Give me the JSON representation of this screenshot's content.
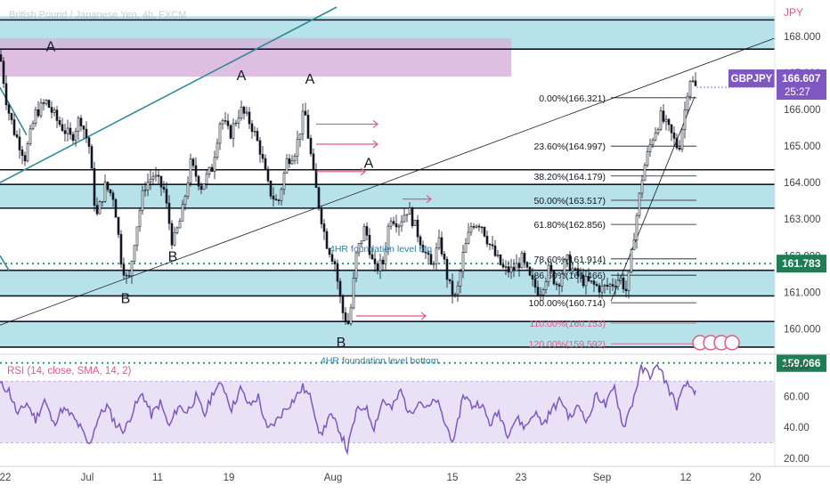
{
  "header": {
    "title": "British Pound / Japanese Yen, 4h, FXCM",
    "currency": "JPY"
  },
  "price_badge": {
    "symbol": "GBPJPY",
    "price": "166.607",
    "countdown": "25:27"
  },
  "level_badges": [
    {
      "label": "161.783",
      "value": 161.783,
      "color": "#1e7d53"
    },
    {
      "label": "159.066",
      "value": 159.066,
      "color": "#1e7d53"
    }
  ],
  "colors": {
    "up": "#131722",
    "down": "#131722",
    "zone": "#9fd8e3",
    "pink_zone": "#d8b4dc",
    "rsi": "#7e57c2",
    "rsi_band": "#e9e2f6",
    "fib": "#131722",
    "fib_ext": "#e05a88",
    "teal_line": "#2e8c99",
    "arrow": "#e05a88"
  },
  "chart_data": [
    {
      "type": "candlestick",
      "symbol": "GBPJPY",
      "timeframe": "4h",
      "y_axis": {
        "ticks": [
          160.0,
          161.0,
          162.0,
          163.0,
          164.0,
          165.0,
          166.0,
          167.0,
          168.0
        ],
        "tick_labels": [
          "160.000",
          "161.000",
          "162.000",
          "163.000",
          "164.000",
          "165.000",
          "166.000",
          "167.000",
          "168.000"
        ],
        "range": [
          159.45,
          168.8
        ]
      },
      "x_axis": {
        "tick_labels": [
          "22",
          "Jul",
          "11",
          "19",
          "Aug",
          "15",
          "23",
          "Sep",
          "12",
          "20"
        ]
      },
      "candle_anchors_close": [
        [
          0,
          167.5
        ],
        [
          8,
          166.1
        ],
        [
          16,
          165.4
        ],
        [
          28,
          164.7
        ],
        [
          40,
          165.9
        ],
        [
          52,
          166.2
        ],
        [
          64,
          165.7
        ],
        [
          80,
          165.2
        ],
        [
          90,
          165.8
        ],
        [
          100,
          165.0
        ],
        [
          108,
          163.0
        ],
        [
          118,
          163.9
        ],
        [
          128,
          163.6
        ],
        [
          136,
          161.9
        ],
        [
          144,
          161.2
        ],
        [
          152,
          162.6
        ],
        [
          162,
          163.9
        ],
        [
          172,
          164.2
        ],
        [
          184,
          163.8
        ],
        [
          194,
          162.3
        ],
        [
          204,
          163.1
        ],
        [
          214,
          164.5
        ],
        [
          226,
          163.9
        ],
        [
          238,
          164.4
        ],
        [
          248,
          165.8
        ],
        [
          258,
          165.3
        ],
        [
          270,
          166.0
        ],
        [
          282,
          165.6
        ],
        [
          292,
          164.9
        ],
        [
          302,
          163.8
        ],
        [
          312,
          163.4
        ],
        [
          322,
          164.6
        ],
        [
          332,
          164.9
        ],
        [
          342,
          166.0
        ],
        [
          352,
          164.2
        ],
        [
          358,
          163.4
        ],
        [
          366,
          162.4
        ],
        [
          376,
          161.8
        ],
        [
          384,
          160.5
        ],
        [
          392,
          160.1
        ],
        [
          400,
          162.0
        ],
        [
          410,
          162.8
        ],
        [
          420,
          161.6
        ],
        [
          430,
          161.8
        ],
        [
          438,
          163.1
        ],
        [
          448,
          162.9
        ],
        [
          458,
          163.3
        ],
        [
          466,
          162.8
        ],
        [
          474,
          162.3
        ],
        [
          484,
          161.7
        ],
        [
          494,
          162.4
        ],
        [
          504,
          161.2
        ],
        [
          512,
          160.8
        ],
        [
          520,
          162.0
        ],
        [
          530,
          162.9
        ],
        [
          540,
          162.9
        ],
        [
          548,
          162.4
        ],
        [
          556,
          162.0
        ],
        [
          566,
          161.6
        ],
        [
          576,
          161.6
        ],
        [
          586,
          161.9
        ],
        [
          596,
          161.3
        ],
        [
          606,
          161.0
        ],
        [
          616,
          161.6
        ],
        [
          626,
          161.2
        ],
        [
          636,
          161.9
        ],
        [
          646,
          161.5
        ],
        [
          656,
          161.3
        ],
        [
          666,
          161.2
        ],
        [
          676,
          161.1
        ],
        [
          686,
          161.2
        ],
        [
          696,
          161.4
        ],
        [
          704,
          161.0
        ],
        [
          712,
          162.6
        ],
        [
          722,
          164.3
        ],
        [
          732,
          165.2
        ],
        [
          742,
          165.8
        ],
        [
          752,
          165.4
        ],
        [
          762,
          164.9
        ],
        [
          768,
          165.8
        ],
        [
          774,
          166.9
        ],
        [
          781,
          166.6
        ]
      ],
      "horizontal_zones": [
        {
          "from": 167.65,
          "to": 168.55,
          "color": "#9fd8e3"
        },
        {
          "from": 163.3,
          "to": 163.95,
          "color": "#9fd8e3"
        },
        {
          "from": 160.9,
          "to": 161.6,
          "color": "#9fd8e3"
        },
        {
          "from": 159.5,
          "to": 160.2,
          "color": "#9fd8e3"
        },
        {
          "from": 166.9,
          "to": 167.95,
          "color": "#d8b4dc",
          "x_end_fraction": 0.66
        }
      ],
      "horizontal_lines": [
        168.45,
        167.65,
        164.35,
        163.95,
        163.3,
        161.6,
        160.9,
        160.2,
        159.5
      ],
      "dotted_lines": [
        161.783,
        159.066
      ],
      "fib_retracement": [
        {
          "label": "0.00%(166.321)",
          "value": 166.321
        },
        {
          "label": "23.60%(164.997)",
          "value": 164.997
        },
        {
          "label": "38.20%(164.179)",
          "value": 164.179
        },
        {
          "label": "50.00%(163.517)",
          "value": 163.517
        },
        {
          "label": "61.80%(162.856)",
          "value": 162.856
        },
        {
          "label": "78.60%(161.914)",
          "value": 161.914
        },
        {
          "label": "86.60%(161.466)",
          "value": 161.466
        },
        {
          "label": "100.00%(160.714)",
          "value": 160.714
        },
        {
          "label": "110.00%(160.153)",
          "value": 160.153
        },
        {
          "label": "120.00%(159.592)",
          "value": 159.592
        }
      ],
      "wave_labels": [
        {
          "text": "A",
          "x": 57,
          "value": 167.6
        },
        {
          "text": "A",
          "x": 271,
          "value": 166.8
        },
        {
          "text": "A",
          "x": 348,
          "value": 166.7
        },
        {
          "text": "A",
          "x": 414,
          "value": 164.4
        },
        {
          "text": "B",
          "x": 141,
          "value": 160.7
        },
        {
          "text": "B",
          "x": 194,
          "value": 161.85
        },
        {
          "text": "B",
          "x": 383,
          "value": 159.5
        }
      ],
      "annotations": [
        {
          "text": "4HR foundation level top",
          "x": 370,
          "value": 162.2
        },
        {
          "text": "4HR foundation level bottom",
          "x": 360,
          "value": 159.15
        }
      ],
      "arrows": [
        {
          "x1": 355,
          "x2": 424,
          "value": 165.6
        },
        {
          "x1": 355,
          "x2": 424,
          "value": 165.05
        },
        {
          "x1": 355,
          "x2": 410,
          "value": 164.3
        },
        {
          "x1": 452,
          "x2": 484,
          "value": 163.55
        },
        {
          "x1": 400,
          "x2": 478,
          "value": 160.35
        }
      ]
    },
    {
      "type": "line",
      "title": "RSI (14, close, SMA, 14, 2)",
      "y_axis": {
        "ticks": [
          20,
          40,
          60,
          80
        ],
        "tick_labels": [
          "20.00",
          "40.00",
          "60.00",
          "80.00"
        ],
        "range": [
          17,
          84
        ]
      },
      "band": [
        30,
        70
      ],
      "series": [
        {
          "values_anchors": [
            [
              0,
              68
            ],
            [
              10,
              64
            ],
            [
              20,
              48
            ],
            [
              30,
              56
            ],
            [
              40,
              45
            ],
            [
              50,
              58
            ],
            [
              60,
              42
            ],
            [
              70,
              52
            ],
            [
              80,
              48
            ],
            [
              90,
              40
            ],
            [
              100,
              28
            ],
            [
              110,
              46
            ],
            [
              120,
              54
            ],
            [
              130,
              42
            ],
            [
              140,
              38
            ],
            [
              150,
              52
            ],
            [
              160,
              62
            ],
            [
              170,
              48
            ],
            [
              180,
              56
            ],
            [
              190,
              40
            ],
            [
              200,
              54
            ],
            [
              210,
              50
            ],
            [
              220,
              60
            ],
            [
              230,
              48
            ],
            [
              240,
              64
            ],
            [
              250,
              68
            ],
            [
              260,
              52
            ],
            [
              270,
              65
            ],
            [
              280,
              54
            ],
            [
              290,
              60
            ],
            [
              300,
              38
            ],
            [
              310,
              44
            ],
            [
              320,
              52
            ],
            [
              330,
              58
            ],
            [
              340,
              66
            ],
            [
              350,
              58
            ],
            [
              360,
              34
            ],
            [
              370,
              48
            ],
            [
              380,
              40
            ],
            [
              390,
              25
            ],
            [
              400,
              50
            ],
            [
              410,
              54
            ],
            [
              420,
              40
            ],
            [
              430,
              58
            ],
            [
              440,
              52
            ],
            [
              450,
              64
            ],
            [
              460,
              48
            ],
            [
              470,
              58
            ],
            [
              480,
              52
            ],
            [
              490,
              58
            ],
            [
              500,
              42
            ],
            [
              510,
              30
            ],
            [
              520,
              62
            ],
            [
              530,
              54
            ],
            [
              540,
              56
            ],
            [
              550,
              42
            ],
            [
              560,
              50
            ],
            [
              570,
              36
            ],
            [
              580,
              46
            ],
            [
              590,
              40
            ],
            [
              600,
              50
            ],
            [
              610,
              42
            ],
            [
              620,
              52
            ],
            [
              630,
              58
            ],
            [
              640,
              46
            ],
            [
              650,
              54
            ],
            [
              660,
              44
            ],
            [
              670,
              62
            ],
            [
              680,
              54
            ],
            [
              690,
              66
            ],
            [
              700,
              40
            ],
            [
              710,
              56
            ],
            [
              720,
              78
            ],
            [
              730,
              74
            ],
            [
              740,
              80
            ],
            [
              750,
              66
            ],
            [
              760,
              54
            ],
            [
              770,
              68
            ],
            [
              781,
              64
            ]
          ]
        }
      ]
    }
  ]
}
